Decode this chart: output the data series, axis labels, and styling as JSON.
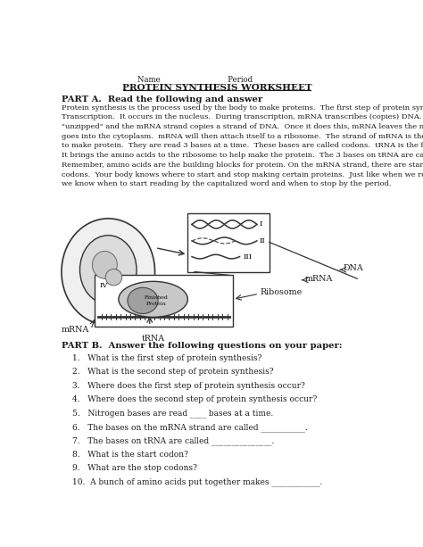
{
  "title_line1": "Name________________  Period___________",
  "title_line2": "PROTEIN SYNTHESIS WORKSHEET",
  "part_a_header": "PART A.  Read the following and answer",
  "part_a_text": "Protein synthesis is the process used by the body to make proteins.  The first step of protein synthesis is called\nTranscription.  It occurs in the nucleus.  During transcription, mRNA transcribes (copies) DNA.  DNA is\n\"unzipped\" and the mRNA strand copies a strand of DNA.  Once it does this, mRNA leaves the nucleus and\ngoes into the cytoplasm.  mRNA will then attach itself to a ribosome.  The strand of mRNA is then read in order\nto make protein.  They are read 3 bases at a time.  These bases are called codons.  tRNA is the fetching puppy.\nIt brings the amino acids to the ribosome to help make the protein.  The 3 bases on tRNA are called anti-codons.\nRemember, amino acids are the building blocks for protein. On the mRNA strand, there are start and stop\ncodons.  Your body knows where to start and stop making certain proteins.  Just like when we read a sentence,\nwe know when to start reading by the capitalized word and when to stop by the period.",
  "part_b_header": "PART B.  Answer the following questions on your paper:",
  "questions": [
    "1.   What is the first step of protein synthesis?",
    "2.   What is the second step of protein synthesis?",
    "3.   Where does the first step of protein synthesis occur?",
    "4.   Where does the second step of protein synthesis occur?",
    "5.   Nitrogen bases are read ____ bases at a time.",
    "6.   The bases on the mRNA strand are called ___________.",
    "7.   The bases on tRNA are called _______________.",
    "8.   What is the start codon?",
    "9.   What are the stop codons?",
    "10.  A bunch of amino acids put together makes ____________."
  ],
  "bg_color": "#ffffff",
  "text_color": "#1a1a1a"
}
